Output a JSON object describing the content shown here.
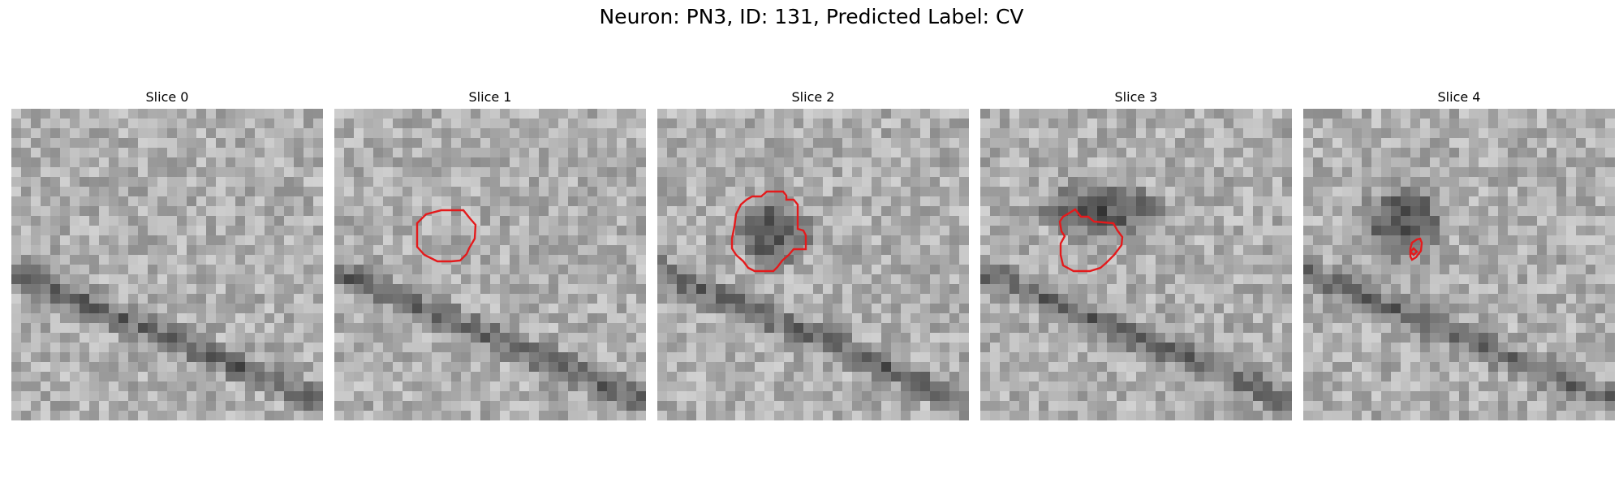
{
  "title": "Neuron: PN3, ID: 131, Predicted Label: CV",
  "colors": {
    "contour": "#e41a1c",
    "background": "#ffffff"
  },
  "panels": [
    {
      "label": "Slice 0",
      "seed": 11,
      "vessel": true,
      "blob": null,
      "contours": []
    },
    {
      "label": "Slice 1",
      "seed": 23,
      "vessel": true,
      "blob": null,
      "contours": [
        [
          [
            132,
            125
          ],
          [
            145,
            125
          ],
          [
            159,
            125
          ],
          [
            167,
            135
          ],
          [
            174,
            143
          ],
          [
            173,
            160
          ],
          [
            166,
            172
          ],
          [
            163,
            179
          ],
          [
            155,
            187
          ],
          [
            144,
            188
          ],
          [
            127,
            188
          ],
          [
            111,
            180
          ],
          [
            102,
            170
          ],
          [
            102,
            159
          ],
          [
            102,
            141
          ],
          [
            113,
            130
          ]
        ]
      ]
    },
    {
      "label": "Slice 2",
      "seed": 37,
      "vessel": true,
      "blob": [
        143,
        153,
        55,
        48
      ],
      "contours": [
        [
          [
            128,
            108
          ],
          [
            135,
            102
          ],
          [
            155,
            102
          ],
          [
            159,
            107
          ],
          [
            159,
            112
          ],
          [
            168,
            112
          ],
          [
            173,
            118
          ],
          [
            173,
            148
          ],
          [
            180,
            150
          ],
          [
            183,
            156
          ],
          [
            183,
            173
          ],
          [
            168,
            173
          ],
          [
            162,
            180
          ],
          [
            154,
            187
          ],
          [
            148,
            195
          ],
          [
            143,
            200
          ],
          [
            120,
            200
          ],
          [
            112,
            196
          ],
          [
            106,
            188
          ],
          [
            97,
            180
          ],
          [
            92,
            172
          ],
          [
            92,
            160
          ],
          [
            95,
            145
          ],
          [
            97,
            130
          ],
          [
            103,
            118
          ],
          [
            110,
            112
          ],
          [
            117,
            108
          ]
        ]
      ]
    },
    {
      "label": "Slice 3",
      "seed": 53,
      "vessel": true,
      "blob": [
        150,
        125,
        90,
        42
      ],
      "contours": [
        [
          [
            112,
            127
          ],
          [
            117,
            124
          ],
          [
            124,
            133
          ],
          [
            133,
            133
          ],
          [
            140,
            139
          ],
          [
            164,
            141
          ],
          [
            169,
            150
          ],
          [
            175,
            158
          ],
          [
            174,
            168
          ],
          [
            165,
            180
          ],
          [
            155,
            190
          ],
          [
            148,
            196
          ],
          [
            135,
            200
          ],
          [
            115,
            200
          ],
          [
            102,
            193
          ],
          [
            99,
            180
          ],
          [
            99,
            166
          ],
          [
            104,
            157
          ],
          [
            100,
            151
          ],
          [
            98,
            139
          ],
          [
            102,
            133
          ]
        ]
      ]
    },
    {
      "label": "Slice 4",
      "seed": 71,
      "vessel": true,
      "blob": [
        125,
        140,
        60,
        55
      ],
      "contours": [
        [
          [
            134,
            165
          ],
          [
            140,
            161
          ],
          [
            144,
            160
          ],
          [
            146,
            165
          ],
          [
            145,
            175
          ],
          [
            139,
            183
          ],
          [
            134,
            186
          ],
          [
            132,
            182
          ],
          [
            132,
            172
          ]
        ],
        [
          [
            136,
            172
          ],
          [
            140,
            176
          ],
          [
            136,
            180
          ],
          [
            132,
            176
          ]
        ]
      ]
    }
  ]
}
